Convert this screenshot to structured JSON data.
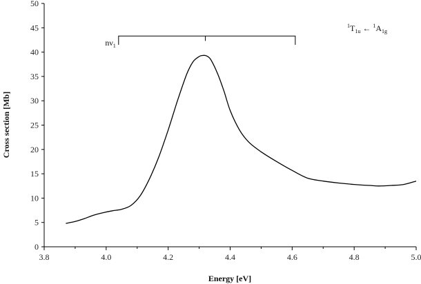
{
  "chart_data": {
    "type": "line",
    "title": "",
    "xlabel": "Energy [eV]",
    "ylabel": "Cross section [Mb]",
    "xlim": [
      3.8,
      5.0
    ],
    "ylim": [
      0,
      50
    ],
    "x_ticks": [
      "3.8",
      "4.0",
      "4.2",
      "4.4",
      "4.6",
      "4.8",
      "5.0"
    ],
    "y_ticks": [
      "0",
      "5",
      "10",
      "15",
      "20",
      "25",
      "30",
      "35",
      "40",
      "45",
      "50"
    ],
    "grid": false,
    "series": [
      {
        "x": [
          3.87,
          3.9,
          3.93,
          3.96,
          3.99,
          4.02,
          4.05,
          4.08,
          4.11,
          4.14,
          4.17,
          4.2,
          4.23,
          4.26,
          4.28,
          4.3,
          4.31,
          4.32,
          4.33,
          4.34,
          4.36,
          4.38,
          4.4,
          4.43,
          4.46,
          4.5,
          4.55,
          4.6,
          4.65,
          4.7,
          4.75,
          4.8,
          4.85,
          4.88,
          4.92,
          4.96,
          5.0
        ],
        "y": [
          4.8,
          5.2,
          5.8,
          6.5,
          7.0,
          7.4,
          7.7,
          8.5,
          10.5,
          14.0,
          18.5,
          24.0,
          30.0,
          35.5,
          38.0,
          39.1,
          39.3,
          39.3,
          39.0,
          38.2,
          35.5,
          32.0,
          28.0,
          24.0,
          21.5,
          19.5,
          17.5,
          15.7,
          14.1,
          13.5,
          13.1,
          12.8,
          12.6,
          12.5,
          12.6,
          12.8,
          13.5
        ]
      }
    ],
    "annotations": {
      "progression": {
        "label": "nν",
        "label_sub": "1",
        "x_start": 4.04,
        "x_end": 4.61,
        "ticks_x": [
          4.04,
          4.32,
          4.61
        ],
        "y_bar": 43.3,
        "y_ends": 41.5,
        "y_mid": 42.3
      },
      "transition": {
        "upper": "T",
        "upper_pre": "1",
        "upper_sub": "1u",
        "arrow": "←",
        "lower": "A",
        "lower_pre": "1",
        "lower_sub": "1g"
      }
    }
  }
}
